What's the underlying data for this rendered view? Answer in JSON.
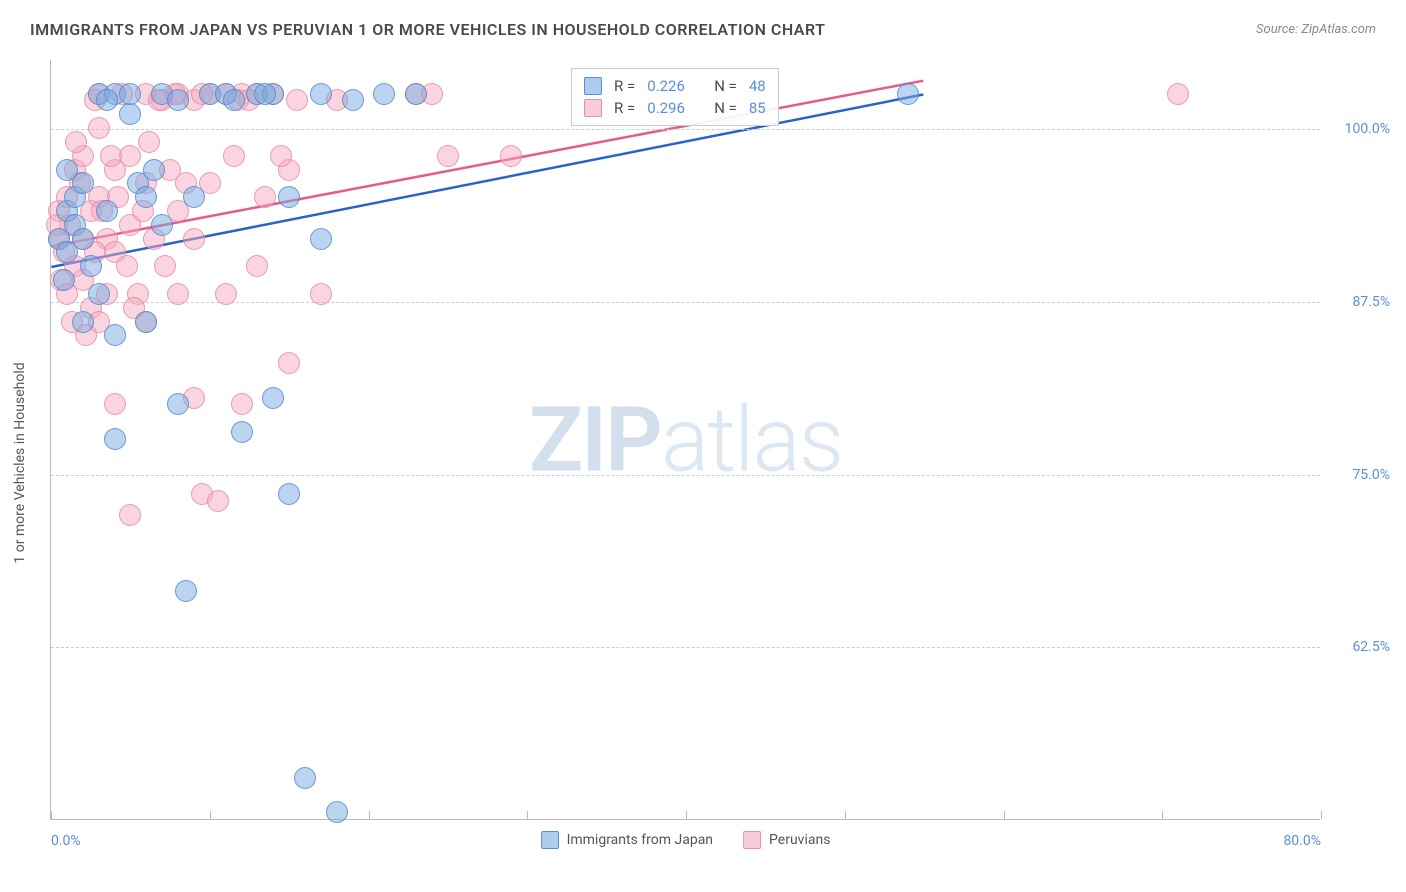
{
  "header": {
    "title": "IMMIGRANTS FROM JAPAN VS PERUVIAN 1 OR MORE VEHICLES IN HOUSEHOLD CORRELATION CHART",
    "source": "Source: ZipAtlas.com"
  },
  "chart": {
    "type": "scatter",
    "y_axis_label": "1 or more Vehicles in Household",
    "xlim": [
      0,
      80
    ],
    "ylim": [
      50,
      105
    ],
    "x_ticks": [
      0,
      10,
      20,
      30,
      40,
      50,
      60,
      70,
      80
    ],
    "x_tick_labels": [
      "0.0%",
      "",
      "",
      "",
      "",
      "",
      "",
      "",
      "80.0%"
    ],
    "y_ticks": [
      62.5,
      75.0,
      87.5,
      100.0
    ],
    "y_tick_labels": [
      "62.5%",
      "75.0%",
      "87.5%",
      "100.0%"
    ],
    "grid_color": "#cccccc",
    "background_color": "#ffffff",
    "tick_label_color": "#5a8fd8",
    "marker_radius": 11,
    "series": [
      {
        "name": "Immigrants from Japan",
        "color_fill": "rgba(120, 170, 225, 0.5)",
        "color_stroke": "rgba(70, 130, 200, 0.7)",
        "r_value": "0.226",
        "n_value": "48",
        "trend_start": [
          0,
          90.0
        ],
        "trend_end": [
          55,
          102.5
        ],
        "trend_color": "#2962c9",
        "points": [
          [
            0.5,
            92
          ],
          [
            1,
            94
          ],
          [
            1,
            91
          ],
          [
            1.5,
            95
          ],
          [
            1.5,
            93
          ],
          [
            2,
            96
          ],
          [
            2,
            86
          ],
          [
            2,
            92
          ],
          [
            3,
            102.5
          ],
          [
            3.5,
            94
          ],
          [
            4,
            102.5
          ],
          [
            4,
            85
          ],
          [
            4,
            77.5
          ],
          [
            5,
            101
          ],
          [
            5.5,
            96
          ],
          [
            6,
            86
          ],
          [
            6,
            95
          ],
          [
            7,
            102.5
          ],
          [
            7,
            93
          ],
          [
            8,
            102
          ],
          [
            8,
            80
          ],
          [
            8.5,
            66.5
          ],
          [
            10,
            102.5
          ],
          [
            11,
            102.5
          ],
          [
            11.5,
            102
          ],
          [
            12,
            78
          ],
          [
            13,
            102.5
          ],
          [
            14,
            102.5
          ],
          [
            14,
            80.5
          ],
          [
            15,
            95
          ],
          [
            15,
            73.5
          ],
          [
            16,
            53
          ],
          [
            17,
            102.5
          ],
          [
            17,
            92
          ],
          [
            18,
            50.5
          ],
          [
            19,
            102
          ],
          [
            5,
            102.5
          ],
          [
            6.5,
            97
          ],
          [
            3,
            88
          ],
          [
            1,
            97
          ],
          [
            2.5,
            90
          ],
          [
            13.5,
            102.5
          ],
          [
            9,
            95
          ],
          [
            3.5,
            102
          ],
          [
            54,
            102.5
          ],
          [
            23,
            102.5
          ],
          [
            21,
            102.5
          ],
          [
            0.8,
            89
          ]
        ]
      },
      {
        "name": "Peruvians",
        "color_fill": "rgba(245, 170, 190, 0.5)",
        "color_stroke": "rgba(230, 130, 160, 0.7)",
        "r_value": "0.296",
        "n_value": "85",
        "trend_start": [
          0,
          91.5
        ],
        "trend_end": [
          55,
          103.5
        ],
        "trend_color": "#e85a8a",
        "points": [
          [
            0.5,
            92
          ],
          [
            0.5,
            94
          ],
          [
            0.8,
            91
          ],
          [
            1,
            88
          ],
          [
            1,
            95
          ],
          [
            1.2,
            93
          ],
          [
            1.5,
            97
          ],
          [
            1.5,
            90
          ],
          [
            1.8,
            96
          ],
          [
            2,
            92
          ],
          [
            2,
            89
          ],
          [
            2,
            98
          ],
          [
            2.5,
            87
          ],
          [
            2.5,
            94
          ],
          [
            3,
            95
          ],
          [
            3,
            100
          ],
          [
            3,
            86
          ],
          [
            3.5,
            92
          ],
          [
            3.5,
            88
          ],
          [
            4,
            97
          ],
          [
            4,
            91
          ],
          [
            4,
            80
          ],
          [
            4.5,
            102.5
          ],
          [
            5,
            98
          ],
          [
            5,
            93
          ],
          [
            5,
            72
          ],
          [
            5.5,
            88
          ],
          [
            6,
            102.5
          ],
          [
            6,
            96
          ],
          [
            6,
            86
          ],
          [
            6.5,
            92
          ],
          [
            7,
            102
          ],
          [
            7.5,
            97
          ],
          [
            8,
            102.5
          ],
          [
            8,
            94
          ],
          [
            8,
            88
          ],
          [
            9,
            102
          ],
          [
            9,
            92
          ],
          [
            9,
            80.5
          ],
          [
            9.5,
            73.5
          ],
          [
            10,
            102.5
          ],
          [
            10,
            96
          ],
          [
            10.5,
            73
          ],
          [
            11,
            102.5
          ],
          [
            11,
            88
          ],
          [
            11.5,
            98
          ],
          [
            12,
            102.5
          ],
          [
            12,
            80
          ],
          [
            13,
            102.5
          ],
          [
            13,
            90
          ],
          [
            14,
            102.5
          ],
          [
            15,
            97
          ],
          [
            15,
            83
          ],
          [
            15.5,
            102
          ],
          [
            17,
            88
          ],
          [
            18,
            102
          ],
          [
            23,
            102.5
          ],
          [
            24,
            102.5
          ],
          [
            25,
            98
          ],
          [
            29,
            98
          ],
          [
            71,
            102.5
          ],
          [
            3,
            102.5
          ],
          [
            2.8,
            102
          ],
          [
            4.2,
            95
          ],
          [
            1.3,
            86
          ],
          [
            0.6,
            89
          ],
          [
            5.8,
            94
          ],
          [
            7.2,
            90
          ],
          [
            3.8,
            98
          ],
          [
            2.2,
            85
          ],
          [
            1.6,
            99
          ],
          [
            6.2,
            99
          ],
          [
            8.5,
            96
          ],
          [
            4.8,
            90
          ],
          [
            3.2,
            94
          ],
          [
            0.4,
            93
          ],
          [
            11.8,
            102
          ],
          [
            13.5,
            95
          ],
          [
            6.8,
            102
          ],
          [
            2.8,
            91
          ],
          [
            5.2,
            87
          ],
          [
            9.5,
            102.5
          ],
          [
            7.8,
            102.5
          ],
          [
            14.5,
            98
          ],
          [
            12.5,
            102
          ]
        ]
      }
    ],
    "legend_bottom": [
      {
        "label": "Immigrants from Japan",
        "series": 0
      },
      {
        "label": "Peruvians",
        "series": 1
      }
    ]
  },
  "watermark": {
    "part1": "ZIP",
    "part2": "atlas"
  }
}
